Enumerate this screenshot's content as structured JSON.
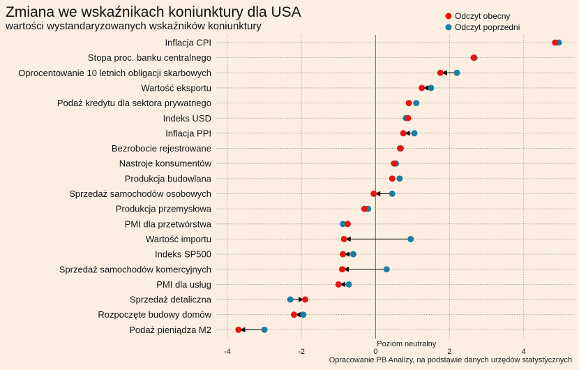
{
  "chart_data": {
    "type": "dot-arrow",
    "title": "Zmiana we wskaźnikach koniunktury dla USA",
    "subtitle": "wartości wystandaryzowanych wskaźników koniunktury",
    "series": [
      {
        "name": "Odczyt obecny",
        "color": "#e8140f"
      },
      {
        "name": "Odczyt poprzedni",
        "color": "#1b7fa5"
      }
    ],
    "xlim": [
      -4.3,
      5.4
    ],
    "xticks": [
      -4,
      -2,
      0,
      2,
      4
    ],
    "xtick_labels": [
      "-4",
      "-2",
      "0",
      "2",
      "4"
    ],
    "legend_position": "top-right",
    "grid": true,
    "categories": [
      {
        "label": "Inflacja CPI",
        "current": 4.85,
        "previous": 4.95
      },
      {
        "label": "Stopa proc. banku centralnego",
        "current": 2.65,
        "previous": 2.67
      },
      {
        "label": "Oprocentowanie 10 letnich obligacji skarbowych",
        "current": 1.75,
        "previous": 2.2
      },
      {
        "label": "Wartość eksportu",
        "current": 1.25,
        "previous": 1.5
      },
      {
        "label": "Podaż kredytu dla sektora prywatnego",
        "current": 0.9,
        "previous": 1.1
      },
      {
        "label": "Indeks USD",
        "current": 0.88,
        "previous": 0.82
      },
      {
        "label": "Inflacja PPI",
        "current": 0.75,
        "previous": 1.05
      },
      {
        "label": "Bezrobocie rejestrowane",
        "current": 0.68,
        "previous": 0.66
      },
      {
        "label": "Nastroje konsumentów",
        "current": 0.5,
        "previous": 0.55
      },
      {
        "label": "Produkcja budowlana",
        "current": 0.45,
        "previous": 0.65
      },
      {
        "label": "Sprzedaż samochodów osobowych",
        "current": -0.05,
        "previous": 0.45
      },
      {
        "label": "Produkcja przemysłowa",
        "current": -0.3,
        "previous": -0.2
      },
      {
        "label": "PMI dla przetwórstwa",
        "current": -0.75,
        "previous": -0.88
      },
      {
        "label": "Wartość importu",
        "current": -0.85,
        "previous": 0.95
      },
      {
        "label": "Indeks SP500",
        "current": -0.88,
        "previous": -0.6
      },
      {
        "label": "Sprzedaż samochodów komercyjnych",
        "current": -0.9,
        "previous": 0.3
      },
      {
        "label": "PMI dla usług",
        "current": -1.0,
        "previous": -0.72
      },
      {
        "label": "Sprzedaż detaliczna",
        "current": -1.9,
        "previous": -2.3
      },
      {
        "label": "Rozpoczęte budowy domów",
        "current": -2.2,
        "previous": -1.95
      },
      {
        "label": "Podaż pieniądza M2",
        "current": -3.7,
        "previous": -3.0
      }
    ],
    "annotation": "Poziom neutralny",
    "source": "Opracowanie  PB Analizy, na podstawie danych urzędów statystycznych"
  }
}
